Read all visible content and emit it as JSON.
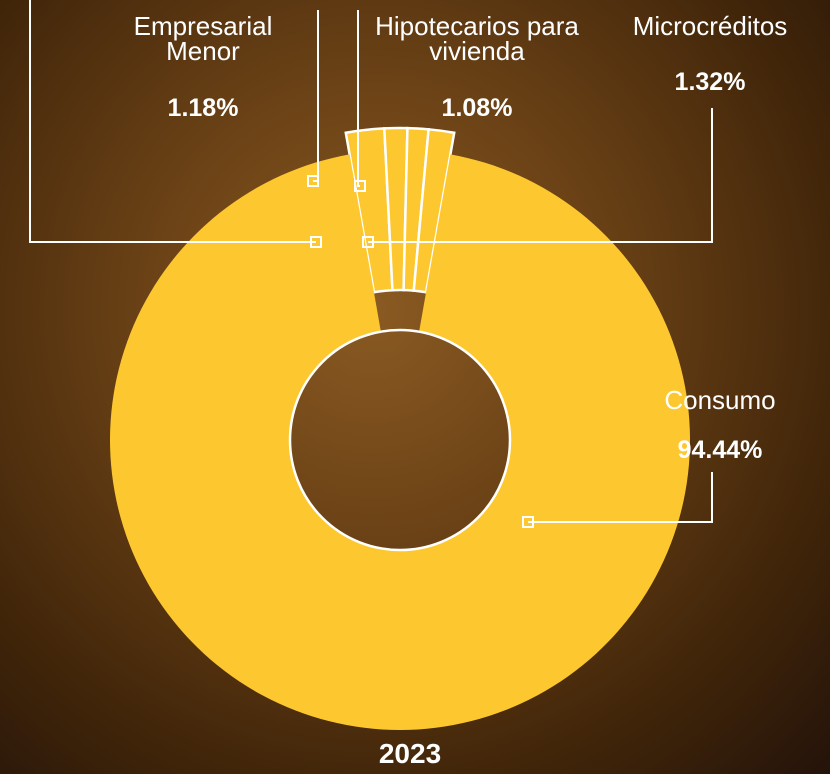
{
  "chart_data": {
    "type": "donut",
    "title": "2023",
    "categories": [
      null,
      "Empresarial Menor",
      "Hipotecarios para vivienda",
      "Microcréditos",
      "Consumo"
    ],
    "values": [
      1.98,
      1.18,
      1.08,
      1.32,
      94.44
    ],
    "value_labels": [
      null,
      "1.18%",
      "1.08%",
      "1.32%",
      "94.44%"
    ],
    "color": "#fdc72f"
  }
}
